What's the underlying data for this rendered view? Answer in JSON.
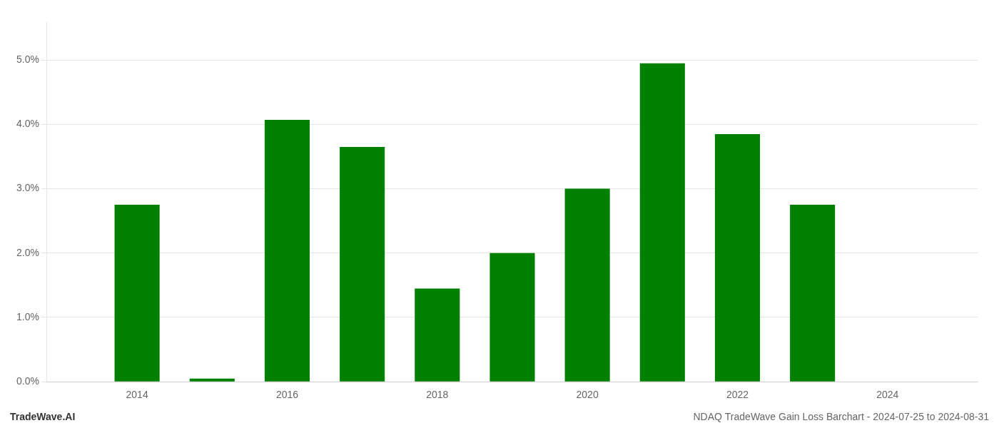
{
  "chart_data": {
    "type": "bar",
    "x": [
      2014,
      2015,
      2016,
      2017,
      2018,
      2019,
      2020,
      2021,
      2022,
      2023,
      2024
    ],
    "values": [
      0.0275,
      0.0005,
      0.0407,
      0.0365,
      0.0145,
      0.02,
      0.03,
      0.0495,
      0.0385,
      0.0275,
      0.0
    ],
    "color": "#008000",
    "xlim": [
      2012.8,
      2025.2
    ],
    "xticks": [
      2014,
      2016,
      2018,
      2020,
      2022,
      2024
    ],
    "ylim": [
      0,
      0.056
    ],
    "yticks": [
      {
        "value": 0.0,
        "label": "0.0%"
      },
      {
        "value": 0.01,
        "label": "1.0%"
      },
      {
        "value": 0.02,
        "label": "2.0%"
      },
      {
        "value": 0.03,
        "label": "3.0%"
      },
      {
        "value": 0.04,
        "label": "4.0%"
      },
      {
        "value": 0.05,
        "label": "5.0%"
      }
    ],
    "grid": "y",
    "annotations": [
      "TradeWave.AI",
      "NDAQ TradeWave Gain Loss Barchart - 2024-07-25 to 2024-08-31"
    ]
  }
}
